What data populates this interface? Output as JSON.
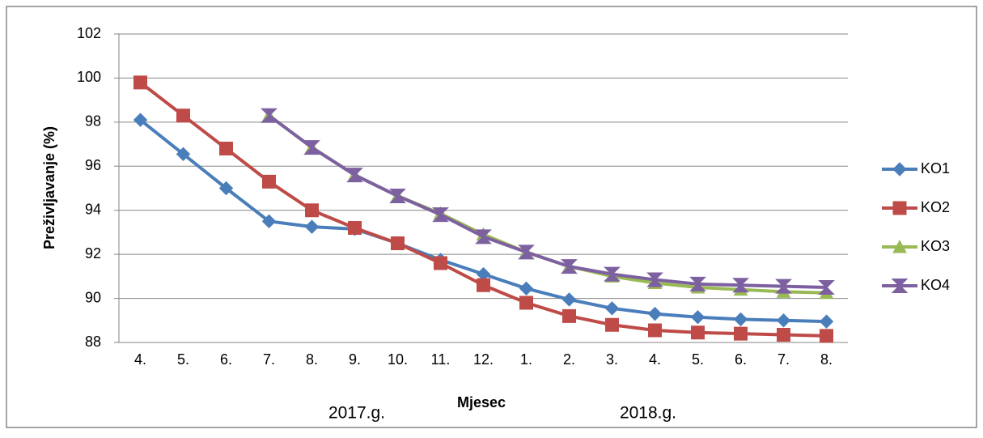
{
  "chart_data": {
    "type": "line",
    "xlabel": "Mjesec",
    "ylabel": "Preživljavanje (%)",
    "annotations": [
      "2017.g.",
      "2018.g."
    ],
    "categories": [
      "4.",
      "5.",
      "6.",
      "7.",
      "8.",
      "9.",
      "10.",
      "11.",
      "12.",
      "1.",
      "2.",
      "3.",
      "4.",
      "5.",
      "6.",
      "7.",
      "8."
    ],
    "series": [
      {
        "name": "KO1",
        "color": "#4a7ebb",
        "marker": "diamond",
        "values": [
          98.1,
          96.55,
          95.0,
          93.5,
          93.25,
          93.15,
          92.5,
          91.75,
          91.1,
          90.45,
          89.95,
          89.55,
          89.3,
          89.15,
          89.05,
          89.0,
          88.95
        ]
      },
      {
        "name": "KO2",
        "color": "#be4b48",
        "marker": "square",
        "values": [
          99.8,
          98.3,
          96.8,
          95.3,
          94.0,
          93.2,
          92.5,
          91.6,
          90.6,
          89.8,
          89.2,
          88.8,
          88.55,
          88.45,
          88.4,
          88.35,
          88.3
        ]
      },
      {
        "name": "KO3",
        "color": "#98b954",
        "marker": "triangle",
        "values": [
          null,
          null,
          null,
          98.3,
          96.85,
          95.6,
          94.65,
          93.85,
          92.9,
          92.1,
          91.45,
          91.0,
          90.7,
          90.5,
          90.4,
          90.3,
          90.25
        ]
      },
      {
        "name": "KO4",
        "color": "#7d60a0",
        "marker": "hourglass",
        "values": [
          null,
          null,
          null,
          98.3,
          96.85,
          95.6,
          94.65,
          93.8,
          92.8,
          92.1,
          91.45,
          91.1,
          90.85,
          90.65,
          90.6,
          90.55,
          90.5
        ]
      }
    ],
    "ylim": [
      88,
      102
    ],
    "yticks": [
      88,
      90,
      92,
      94,
      96,
      98,
      100,
      102
    ],
    "grid": true,
    "legend": "right"
  }
}
